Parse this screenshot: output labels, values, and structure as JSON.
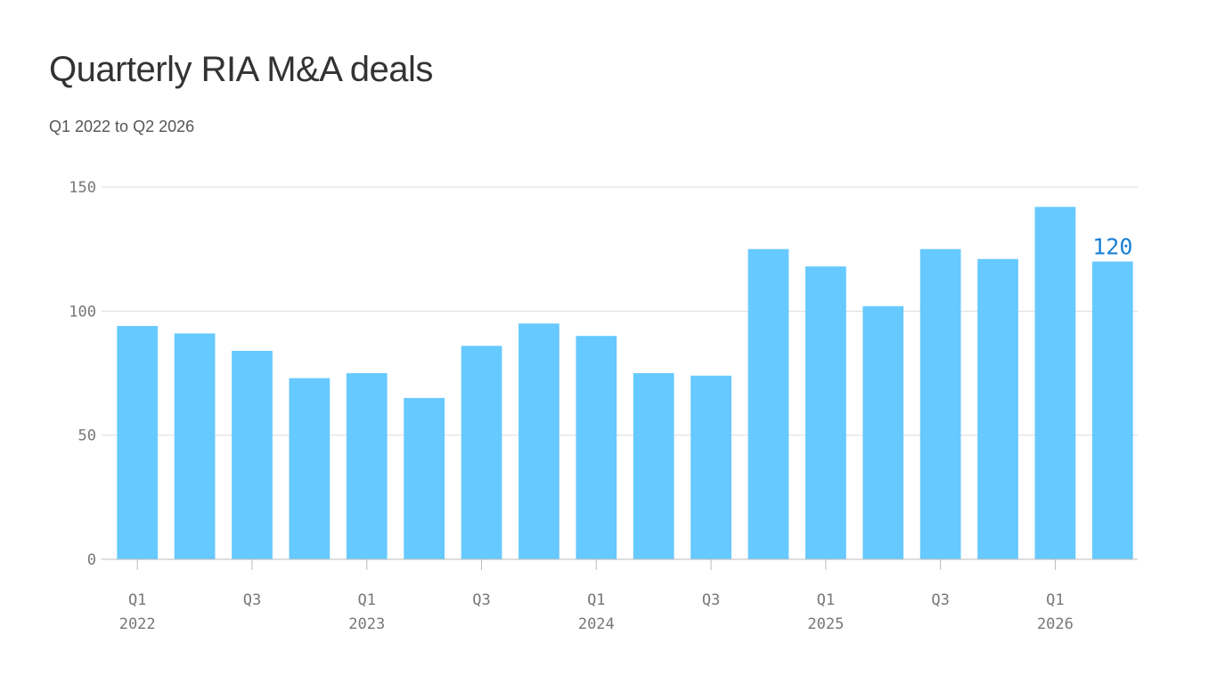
{
  "title": "Quarterly RIA M&A deals",
  "subtitle": "Q1 2022 to Q2 2026",
  "colors": {
    "bar": "#66c9ff",
    "highlight_label": "#1a7fd4",
    "grid": "#dddddd",
    "tick_text": "#777777"
  },
  "chart_data": {
    "type": "bar",
    "title": "Quarterly RIA M&A deals",
    "subtitle": "Q1 2022 to Q2 2026",
    "categories": [
      "Q1 2022",
      "Q2 2022",
      "Q3 2022",
      "Q4 2022",
      "Q1 2023",
      "Q2 2023",
      "Q3 2023",
      "Q4 2023",
      "Q1 2024",
      "Q2 2024",
      "Q3 2024",
      "Q4 2024",
      "Q1 2025",
      "Q2 2025",
      "Q3 2025",
      "Q4 2025",
      "Q1 2026",
      "Q2 2026"
    ],
    "values": [
      94,
      91,
      84,
      73,
      75,
      65,
      86,
      95,
      90,
      75,
      74,
      125,
      118,
      102,
      125,
      121,
      142,
      120
    ],
    "ylim": [
      0,
      150
    ],
    "yticks": [
      "0",
      "50",
      "100",
      "150"
    ],
    "ytick_values": [
      0,
      50,
      100,
      150
    ],
    "xticks": [
      {
        "index": 0,
        "quarter": "Q1",
        "year": "2022"
      },
      {
        "index": 2,
        "quarter": "Q3",
        "year": ""
      },
      {
        "index": 4,
        "quarter": "Q1",
        "year": "2023"
      },
      {
        "index": 6,
        "quarter": "Q3",
        "year": ""
      },
      {
        "index": 8,
        "quarter": "Q1",
        "year": "2024"
      },
      {
        "index": 10,
        "quarter": "Q3",
        "year": ""
      },
      {
        "index": 12,
        "quarter": "Q1",
        "year": "2025"
      },
      {
        "index": 14,
        "quarter": "Q3",
        "year": ""
      },
      {
        "index": 16,
        "quarter": "Q1",
        "year": "2026"
      }
    ],
    "annotation": {
      "index": 17,
      "text": "120"
    },
    "grid": true,
    "xlabel": "",
    "ylabel": ""
  }
}
